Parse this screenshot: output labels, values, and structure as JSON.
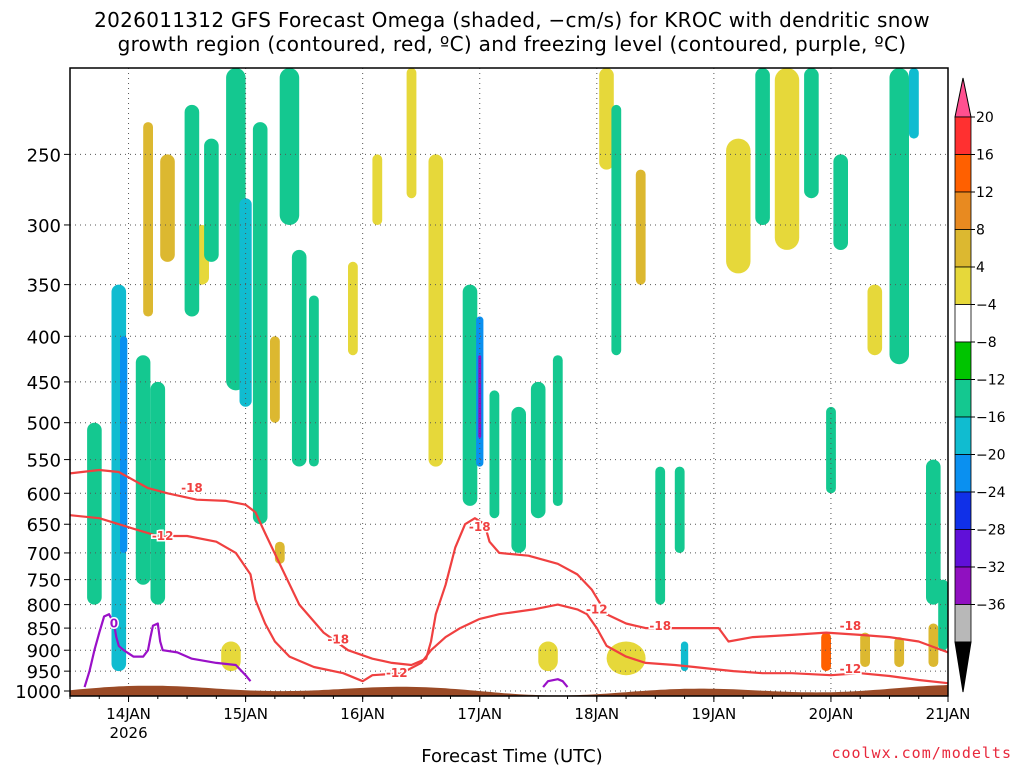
{
  "title_line1": "2026011312 GFS Forecast Omega (shaded, −cm/s) for KROC with dendritic snow",
  "title_line2": "growth region (contoured, red, ºC) and freezing level (contoured, purple, ºC)",
  "xlabel": "Forecast Time (UTC)",
  "credit": "coolwx.com/modelts",
  "chart_data": {
    "type": "heatmap",
    "y_axis": {
      "scale": "log-pressure inverted",
      "ticks": [
        "250",
        "300",
        "350",
        "400",
        "450",
        "500",
        "550",
        "600",
        "650",
        "700",
        "750",
        "800",
        "850",
        "900",
        "950",
        "1000"
      ],
      "range_hpa": [
        200,
        1013
      ]
    },
    "x_axis": {
      "ticks": [
        {
          "label": "14JAN",
          "sub": "2026",
          "hours": 12
        },
        {
          "label": "15JAN",
          "sub": "",
          "hours": 36
        },
        {
          "label": "16JAN",
          "sub": "",
          "hours": 60
        },
        {
          "label": "17JAN",
          "sub": "",
          "hours": 84
        },
        {
          "label": "18JAN",
          "sub": "",
          "hours": 108
        },
        {
          "label": "19JAN",
          "sub": "",
          "hours": 132
        },
        {
          "label": "20JAN",
          "sub": "",
          "hours": 156
        },
        {
          "label": "21JAN",
          "sub": "",
          "hours": 180
        }
      ],
      "range_hours": [
        0,
        180
      ],
      "start": "2026011312"
    },
    "grid": true,
    "colorbar": {
      "labels": [
        "20",
        "16",
        "12",
        "8",
        "4",
        "−4",
        "−8",
        "−12",
        "−16",
        "−20",
        "−24",
        "−28",
        "−32",
        "−36"
      ],
      "colors": [
        "#ff5090",
        "#ff3030",
        "#ff6000",
        "#e88a20",
        "#dcb830",
        "#e6d83a",
        "#ffffff",
        "#00c400",
        "#14c890",
        "#10bcd0",
        "#0a90f0",
        "#1030e8",
        "#6010d8",
        "#9010c0",
        "#b8b8b8",
        "#000000"
      ]
    },
    "contours": [
      {
        "name": "dendritic",
        "label": "-18",
        "color": "#f04040",
        "points": [
          [
            0,
            570
          ],
          [
            6,
            565
          ],
          [
            10,
            568
          ],
          [
            13,
            580
          ],
          [
            16,
            592
          ],
          [
            20,
            600
          ],
          [
            26,
            610
          ],
          [
            32,
            612
          ],
          [
            36,
            618
          ],
          [
            38,
            630
          ],
          [
            40,
            665
          ],
          [
            43,
            720
          ],
          [
            47,
            800
          ],
          [
            52,
            860
          ],
          [
            57,
            900
          ],
          [
            62,
            920
          ],
          [
            66,
            930
          ],
          [
            70,
            935
          ],
          [
            73,
            920
          ],
          [
            74,
            880
          ],
          [
            75,
            820
          ],
          [
            77,
            760
          ],
          [
            79,
            690
          ],
          [
            81,
            650
          ],
          [
            83,
            640
          ],
          [
            85,
            650
          ],
          [
            86,
            680
          ],
          [
            88,
            700
          ],
          [
            94,
            705
          ],
          [
            100,
            720
          ],
          [
            104,
            740
          ],
          [
            107,
            770
          ],
          [
            110,
            820
          ],
          [
            114,
            840
          ],
          [
            118,
            850
          ],
          [
            125,
            850
          ],
          [
            129,
            850
          ],
          [
            133,
            850
          ],
          [
            135,
            880
          ],
          [
            140,
            870
          ],
          [
            148,
            865
          ],
          [
            155,
            860
          ],
          [
            162,
            865
          ],
          [
            168,
            870
          ],
          [
            174,
            880
          ],
          [
            180,
            905
          ]
        ]
      },
      {
        "name": "dendritic",
        "label": "-12",
        "color": "#f04040",
        "points": [
          [
            0,
            635
          ],
          [
            6,
            640
          ],
          [
            10,
            650
          ],
          [
            14,
            660
          ],
          [
            18,
            670
          ],
          [
            24,
            670
          ],
          [
            30,
            680
          ],
          [
            34,
            700
          ],
          [
            37,
            740
          ],
          [
            38,
            790
          ],
          [
            40,
            840
          ],
          [
            42,
            880
          ],
          [
            45,
            915
          ],
          [
            50,
            940
          ],
          [
            56,
            955
          ],
          [
            60,
            975
          ],
          [
            62,
            960
          ],
          [
            68,
            955
          ],
          [
            72,
            930
          ],
          [
            74,
            900
          ],
          [
            77,
            870
          ],
          [
            80,
            850
          ],
          [
            84,
            830
          ],
          [
            88,
            820
          ],
          [
            95,
            810
          ],
          [
            100,
            800
          ],
          [
            104,
            810
          ],
          [
            106,
            820
          ],
          [
            108,
            850
          ],
          [
            110,
            890
          ],
          [
            114,
            915
          ],
          [
            118,
            930
          ],
          [
            124,
            935
          ],
          [
            128,
            940
          ],
          [
            132,
            945
          ],
          [
            136,
            950
          ],
          [
            142,
            955
          ],
          [
            148,
            955
          ],
          [
            156,
            960
          ],
          [
            162,
            955
          ],
          [
            168,
            962
          ],
          [
            174,
            972
          ],
          [
            180,
            980
          ]
        ]
      },
      {
        "name": "freezing",
        "label": "0",
        "color": "#9a10c8",
        "points": [
          [
            3,
            990
          ],
          [
            4,
            950
          ],
          [
            5,
            900
          ],
          [
            6,
            860
          ],
          [
            7,
            825
          ],
          [
            8,
            820
          ],
          [
            9,
            840
          ],
          [
            9.5,
            870
          ],
          [
            10,
            890
          ],
          [
            11,
            900
          ],
          [
            13,
            915
          ],
          [
            15,
            915
          ],
          [
            16,
            900
          ],
          [
            16.5,
            870
          ],
          [
            17,
            845
          ],
          [
            18,
            840
          ],
          [
            18.5,
            880
          ],
          [
            19,
            900
          ],
          [
            22,
            905
          ],
          [
            25,
            920
          ],
          [
            30,
            930
          ],
          [
            34,
            935
          ],
          [
            36,
            960
          ],
          [
            37,
            975
          ]
        ]
      },
      {
        "name": "freezing",
        "label": "",
        "color": "#9a10c8",
        "points": [
          [
            97,
            990
          ],
          [
            98,
            975
          ],
          [
            100,
            970
          ],
          [
            101,
            975
          ],
          [
            102,
            990
          ]
        ]
      }
    ],
    "contour_labels": [
      {
        "text": "-18",
        "hours": 25,
        "hpa": 592
      },
      {
        "text": "-12",
        "hours": 19,
        "hpa": 670
      },
      {
        "text": "-18",
        "hours": 55,
        "hpa": 875
      },
      {
        "text": "-12",
        "hours": 67,
        "hpa": 955
      },
      {
        "text": "-18",
        "hours": 84,
        "hpa": 655
      },
      {
        "text": "-12",
        "hours": 108,
        "hpa": 810
      },
      {
        "text": "-18",
        "hours": 121,
        "hpa": 845
      },
      {
        "text": "-18",
        "hours": 160,
        "hpa": 845
      },
      {
        "text": "-12",
        "hours": 160,
        "hpa": 945
      },
      {
        "text": "0",
        "hours": 9,
        "hpa": 840
      }
    ],
    "shaded_omega": [
      {
        "hours": 10,
        "hpa": [
          350,
          950
        ],
        "value": -12,
        "w": 3
      },
      {
        "hours": 11,
        "hpa": [
          400,
          700
        ],
        "value": -16,
        "w": 1.5
      },
      {
        "hours": 5,
        "hpa": [
          500,
          800
        ],
        "value": -8,
        "w": 3
      },
      {
        "hours": 15,
        "hpa": [
          420,
          760
        ],
        "value": -8,
        "w": 3
      },
      {
        "hours": 18,
        "hpa": [
          450,
          800
        ],
        "value": -8,
        "w": 3
      },
      {
        "hours": 25,
        "hpa": [
          220,
          380
        ],
        "value": -8,
        "w": 3
      },
      {
        "hours": 29,
        "hpa": [
          240,
          330
        ],
        "value": -8,
        "w": 3
      },
      {
        "hours": 34,
        "hpa": [
          200,
          460
        ],
        "value": -8,
        "w": 4
      },
      {
        "hours": 36,
        "hpa": [
          280,
          480
        ],
        "value": -12,
        "w": 2.5
      },
      {
        "hours": 39,
        "hpa": [
          230,
          650
        ],
        "value": -8,
        "w": 3
      },
      {
        "hours": 45,
        "hpa": [
          200,
          300
        ],
        "value": -8,
        "w": 4
      },
      {
        "hours": 47,
        "hpa": [
          320,
          560
        ],
        "value": -8,
        "w": 3
      },
      {
        "hours": 50,
        "hpa": [
          360,
          560
        ],
        "value": -8,
        "w": 2
      },
      {
        "hours": 82,
        "hpa": [
          350,
          620
        ],
        "value": -8,
        "w": 3
      },
      {
        "hours": 84,
        "hpa": [
          380,
          560
        ],
        "value": -16,
        "w": 1.5
      },
      {
        "hours": 84,
        "hpa": [
          420,
          520
        ],
        "value": -28,
        "w": 0.6
      },
      {
        "hours": 87,
        "hpa": [
          460,
          640
        ],
        "value": -8,
        "w": 2
      },
      {
        "hours": 92,
        "hpa": [
          480,
          700
        ],
        "value": -8,
        "w": 3
      },
      {
        "hours": 96,
        "hpa": [
          450,
          640
        ],
        "value": -8,
        "w": 3
      },
      {
        "hours": 100,
        "hpa": [
          420,
          620
        ],
        "value": -8,
        "w": 2
      },
      {
        "hours": 112,
        "hpa": [
          220,
          420
        ],
        "value": -8,
        "w": 2
      },
      {
        "hours": 121,
        "hpa": [
          560,
          800
        ],
        "value": -8,
        "w": 2
      },
      {
        "hours": 125,
        "hpa": [
          560,
          700
        ],
        "value": -8,
        "w": 2
      },
      {
        "hours": 126,
        "hpa": [
          880,
          950
        ],
        "value": -12,
        "w": 1.5
      },
      {
        "hours": 142,
        "hpa": [
          200,
          300
        ],
        "value": -8,
        "w": 3
      },
      {
        "hours": 152,
        "hpa": [
          200,
          280
        ],
        "value": -8,
        "w": 3
      },
      {
        "hours": 158,
        "hpa": [
          250,
          320
        ],
        "value": -8,
        "w": 3
      },
      {
        "hours": 156,
        "hpa": [
          480,
          600
        ],
        "value": -8,
        "w": 2
      },
      {
        "hours": 170,
        "hpa": [
          200,
          430
        ],
        "value": -8,
        "w": 4
      },
      {
        "hours": 173,
        "hpa": [
          200,
          240
        ],
        "value": -12,
        "w": 2
      },
      {
        "hours": 177,
        "hpa": [
          550,
          800
        ],
        "value": -8,
        "w": 3
      },
      {
        "hours": 179,
        "hpa": [
          750,
          900
        ],
        "value": -8,
        "w": 2
      }
    ],
    "shaded_positive": [
      {
        "hours": 16,
        "hpa": [
          230,
          380
        ],
        "value": 8,
        "w": 2
      },
      {
        "hours": 20,
        "hpa": [
          250,
          330
        ],
        "value": 8,
        "w": 3
      },
      {
        "hours": 27,
        "hpa": [
          300,
          350
        ],
        "value": 4,
        "w": 3
      },
      {
        "hours": 42,
        "hpa": [
          400,
          500
        ],
        "value": 8,
        "w": 2
      },
      {
        "hours": 43,
        "hpa": [
          680,
          720
        ],
        "value": 8,
        "w": 2
      },
      {
        "hours": 58,
        "hpa": [
          330,
          420
        ],
        "value": 4,
        "w": 2
      },
      {
        "hours": 63,
        "hpa": [
          250,
          300
        ],
        "value": 4,
        "w": 2
      },
      {
        "hours": 70,
        "hpa": [
          200,
          280
        ],
        "value": 4,
        "w": 2
      },
      {
        "hours": 75,
        "hpa": [
          250,
          560
        ],
        "value": 4,
        "w": 3
      },
      {
        "hours": 110,
        "hpa": [
          200,
          260
        ],
        "value": 4,
        "w": 3
      },
      {
        "hours": 117,
        "hpa": [
          260,
          350
        ],
        "value": 8,
        "w": 2
      },
      {
        "hours": 137,
        "hpa": [
          240,
          340
        ],
        "value": 4,
        "w": 5
      },
      {
        "hours": 147,
        "hpa": [
          200,
          320
        ],
        "value": 4,
        "w": 5
      },
      {
        "hours": 165,
        "hpa": [
          350,
          420
        ],
        "value": 4,
        "w": 3
      },
      {
        "hours": 155,
        "hpa": [
          860,
          950
        ],
        "value": 16,
        "w": 2
      },
      {
        "hours": 163,
        "hpa": [
          860,
          940
        ],
        "value": 8,
        "w": 2
      },
      {
        "hours": 170,
        "hpa": [
          870,
          940
        ],
        "value": 8,
        "w": 2
      },
      {
        "hours": 177,
        "hpa": [
          840,
          940
        ],
        "value": 8,
        "w": 2
      },
      {
        "hours": 114,
        "hpa": [
          880,
          960
        ],
        "value": 4,
        "w": 8
      },
      {
        "hours": 98,
        "hpa": [
          880,
          950
        ],
        "value": 4,
        "w": 4
      },
      {
        "hours": 33,
        "hpa": [
          880,
          950
        ],
        "value": 4,
        "w": 4
      }
    ]
  }
}
